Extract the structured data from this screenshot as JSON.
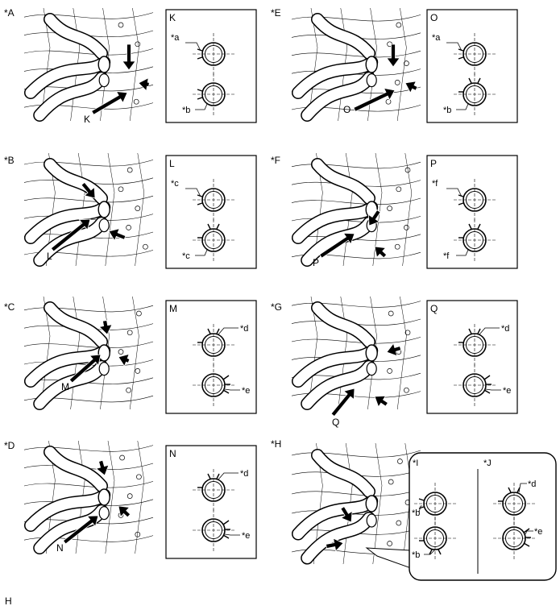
{
  "panels": [
    {
      "id": "*A",
      "callout": "K",
      "detail": "K",
      "top_label": "*a",
      "bottom_label": "*b"
    },
    {
      "id": "*B",
      "callout": "L",
      "detail": "L",
      "top_label": "*c",
      "bottom_label": "*c"
    },
    {
      "id": "*C",
      "callout": "M",
      "detail": "M",
      "top_label": "*d",
      "bottom_label": "*e"
    },
    {
      "id": "*D",
      "callout": "N",
      "detail": "N",
      "top_label": "*d",
      "bottom_label": "*e"
    },
    {
      "id": "*E",
      "callout": "O",
      "detail": "O",
      "top_label": "*a",
      "bottom_label": "*b"
    },
    {
      "id": "*F",
      "callout": "P",
      "detail": "P",
      "top_label": "*f",
      "bottom_label": "*f"
    },
    {
      "id": "*G",
      "callout": "Q",
      "detail": "Q",
      "top_label": "*d",
      "bottom_label": "*e"
    }
  ],
  "panel_h": {
    "id": "*H",
    "left_id": "*I",
    "left_top": "*b",
    "left_bottom": "*b",
    "right_id": "*J",
    "right_top": "*d",
    "right_bottom": "*e"
  },
  "footer_code": "H"
}
